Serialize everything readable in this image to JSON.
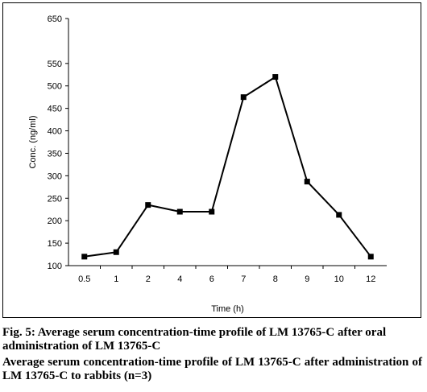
{
  "chart_data": {
    "type": "line",
    "categories": [
      "0.5",
      "1",
      "2",
      "4",
      "6",
      "7",
      "8",
      "9",
      "10",
      "12"
    ],
    "series": [
      {
        "values": [
          120,
          130,
          235,
          220,
          220,
          475,
          520,
          287,
          213,
          120
        ]
      }
    ],
    "xlabel": "Time (h)",
    "ylabel": "Conc. (ng/ml)",
    "ylim": [
      100,
      650
    ],
    "yticks": [
      100,
      150,
      200,
      250,
      300,
      350,
      400,
      450,
      500,
      550,
      650
    ],
    "grid": false,
    "marker": "square",
    "color": "#000000"
  },
  "caption": {
    "figure_title": "Fig. 5: Average serum concentration-time profile of LM 13765-C after oral administration of LM 13765-C",
    "note": "Average serum concentration-time profile of LM 13765-C after administration of LM 13765-C to rabbits (n=3)"
  }
}
